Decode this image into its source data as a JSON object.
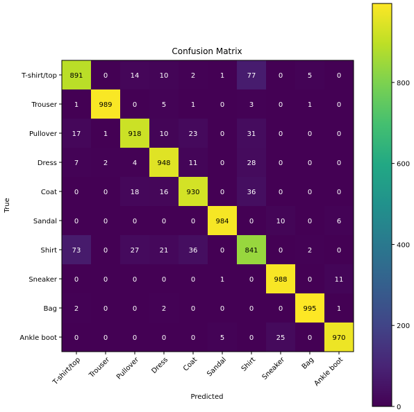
{
  "chart_data": {
    "type": "heatmap",
    "title": "Confusion Matrix",
    "xlabel": "Predicted",
    "ylabel": "True",
    "labels": [
      "T-shirt/top",
      "Trouser",
      "Pullover",
      "Dress",
      "Coat",
      "Sandal",
      "Shirt",
      "Sneaker",
      "Bag",
      "Ankle boot"
    ],
    "matrix": [
      [
        891,
        0,
        14,
        10,
        2,
        1,
        77,
        0,
        5,
        0
      ],
      [
        1,
        989,
        0,
        5,
        1,
        0,
        3,
        0,
        1,
        0
      ],
      [
        17,
        1,
        918,
        10,
        23,
        0,
        31,
        0,
        0,
        0
      ],
      [
        7,
        2,
        4,
        948,
        11,
        0,
        28,
        0,
        0,
        0
      ],
      [
        0,
        0,
        18,
        16,
        930,
        0,
        36,
        0,
        0,
        0
      ],
      [
        0,
        0,
        0,
        0,
        0,
        984,
        0,
        10,
        0,
        6
      ],
      [
        73,
        0,
        27,
        21,
        36,
        0,
        841,
        0,
        2,
        0
      ],
      [
        0,
        0,
        0,
        0,
        0,
        1,
        0,
        988,
        0,
        11
      ],
      [
        2,
        0,
        0,
        2,
        0,
        0,
        0,
        0,
        995,
        1
      ],
      [
        0,
        0,
        0,
        0,
        0,
        5,
        0,
        25,
        0,
        970
      ]
    ],
    "vmin": 0,
    "vmax": 995,
    "colormap": "viridis",
    "colorbar_ticks": [
      0,
      200,
      400,
      600,
      800
    ],
    "grid": false
  }
}
